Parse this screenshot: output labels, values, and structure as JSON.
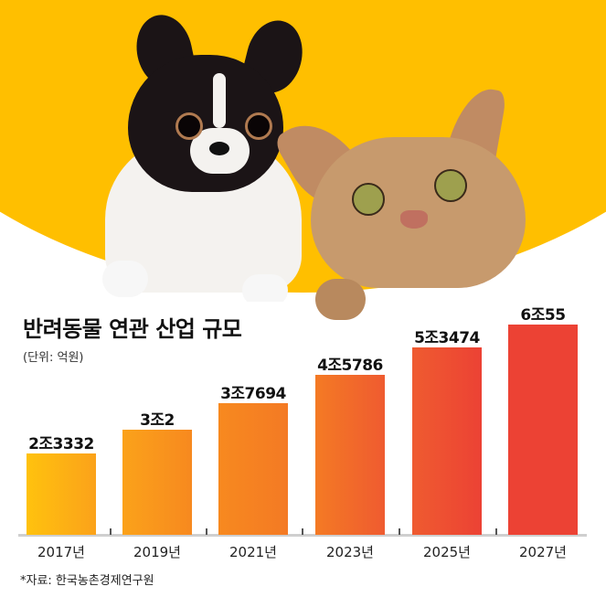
{
  "header": {
    "title": "반려동물 연관 산업 규모",
    "unit": "(단위: 억원)",
    "illustration": "dog-and-cat-photo"
  },
  "colors": {
    "banner_yellow": "#FFBF00",
    "bar_gradient": [
      "#FFC20E",
      "#FBA21A",
      "#F7891F",
      "#F47A24",
      "#EF5B30",
      "#EC4234"
    ]
  },
  "footer": {
    "source": "*자료: 한국농촌경제연구원"
  },
  "chart_data": {
    "type": "bar",
    "title": "반려동물 연관 산업 규모",
    "subtitle": "(단위: 억원)",
    "xlabel": "",
    "ylabel": "억원",
    "categories": [
      "2017년",
      "2019년",
      "2021년",
      "2023년",
      "2025년",
      "2027년"
    ],
    "values": [
      23332,
      30002,
      37694,
      45786,
      53474,
      60055
    ],
    "data_labels": [
      "2조3332",
      "3조2",
      "3조7694",
      "4조5786",
      "5조3474",
      "6조55"
    ],
    "grid": false,
    "legend": null,
    "source": "*자료: 한국농촌경제연구원"
  }
}
